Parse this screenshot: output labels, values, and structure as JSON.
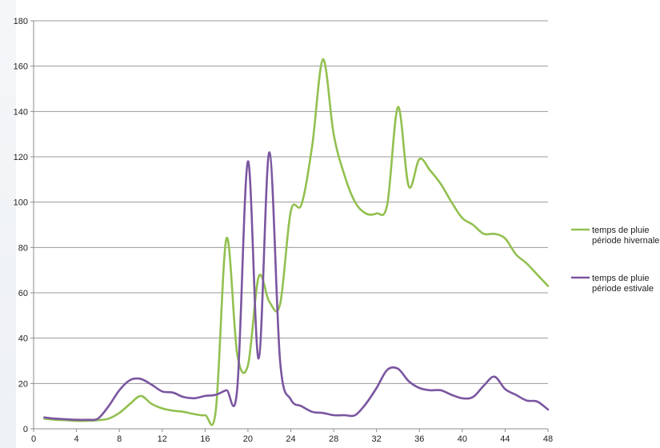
{
  "chart_data": {
    "type": "line",
    "title": "",
    "xlabel": "",
    "ylabel": "",
    "xlim": [
      0,
      48
    ],
    "ylim": [
      0,
      180
    ],
    "xticks": [
      0,
      4,
      8,
      12,
      16,
      20,
      24,
      28,
      32,
      36,
      40,
      44,
      48
    ],
    "yticks": [
      0,
      20,
      40,
      60,
      80,
      100,
      120,
      140,
      160,
      180
    ],
    "grid": "horizontal",
    "legend_position": "right",
    "series": [
      {
        "name_lines": [
          "temps de pluie",
          "période hivernale"
        ],
        "color": "#92c050",
        "x": [
          1,
          2,
          3,
          4,
          5,
          6,
          7,
          8,
          9,
          10,
          11,
          12,
          13,
          14,
          15,
          16,
          17,
          18,
          19,
          20,
          21,
          22,
          23,
          24,
          25,
          26,
          27,
          28,
          29,
          30,
          31,
          32,
          33,
          34,
          35,
          36,
          37,
          38,
          39,
          40,
          41,
          42,
          43,
          44,
          45,
          46,
          47,
          48
        ],
        "values": [
          4.5,
          4,
          3.8,
          3.5,
          3.5,
          3.8,
          4.5,
          7,
          11,
          14.5,
          11,
          9,
          8,
          7.5,
          6.5,
          6,
          8,
          84,
          33,
          28,
          67,
          56,
          55,
          96,
          99,
          125,
          163,
          130,
          112,
          100,
          95,
          95,
          99,
          142,
          107,
          119,
          114,
          108,
          100,
          93,
          90,
          86,
          86,
          84,
          77,
          73,
          68,
          63
        ]
      },
      {
        "name_lines": [
          "temps de pluie",
          "période estivale"
        ],
        "color": "#7a56a0",
        "x": [
          1,
          2,
          3,
          4,
          5,
          6,
          7,
          8,
          9,
          10,
          11,
          12,
          13,
          14,
          15,
          16,
          17,
          18,
          19,
          20,
          21,
          22,
          23,
          24,
          25,
          26,
          27,
          28,
          29,
          30,
          31,
          32,
          33,
          34,
          35,
          36,
          37,
          38,
          39,
          40,
          41,
          42,
          43,
          44,
          45,
          46,
          47,
          48
        ],
        "values": [
          5,
          4.5,
          4.2,
          4,
          4,
          4.5,
          10,
          17,
          21.5,
          22,
          19.5,
          16.5,
          16,
          14,
          13.5,
          14.5,
          15,
          17,
          17.5,
          118,
          31,
          122,
          30,
          13,
          10,
          7.5,
          7,
          6,
          6,
          6,
          11,
          18,
          26,
          26.5,
          21,
          18,
          17,
          17,
          15,
          13.5,
          14,
          19,
          23,
          17.5,
          15,
          12.5,
          12,
          8.5
        ]
      }
    ]
  }
}
